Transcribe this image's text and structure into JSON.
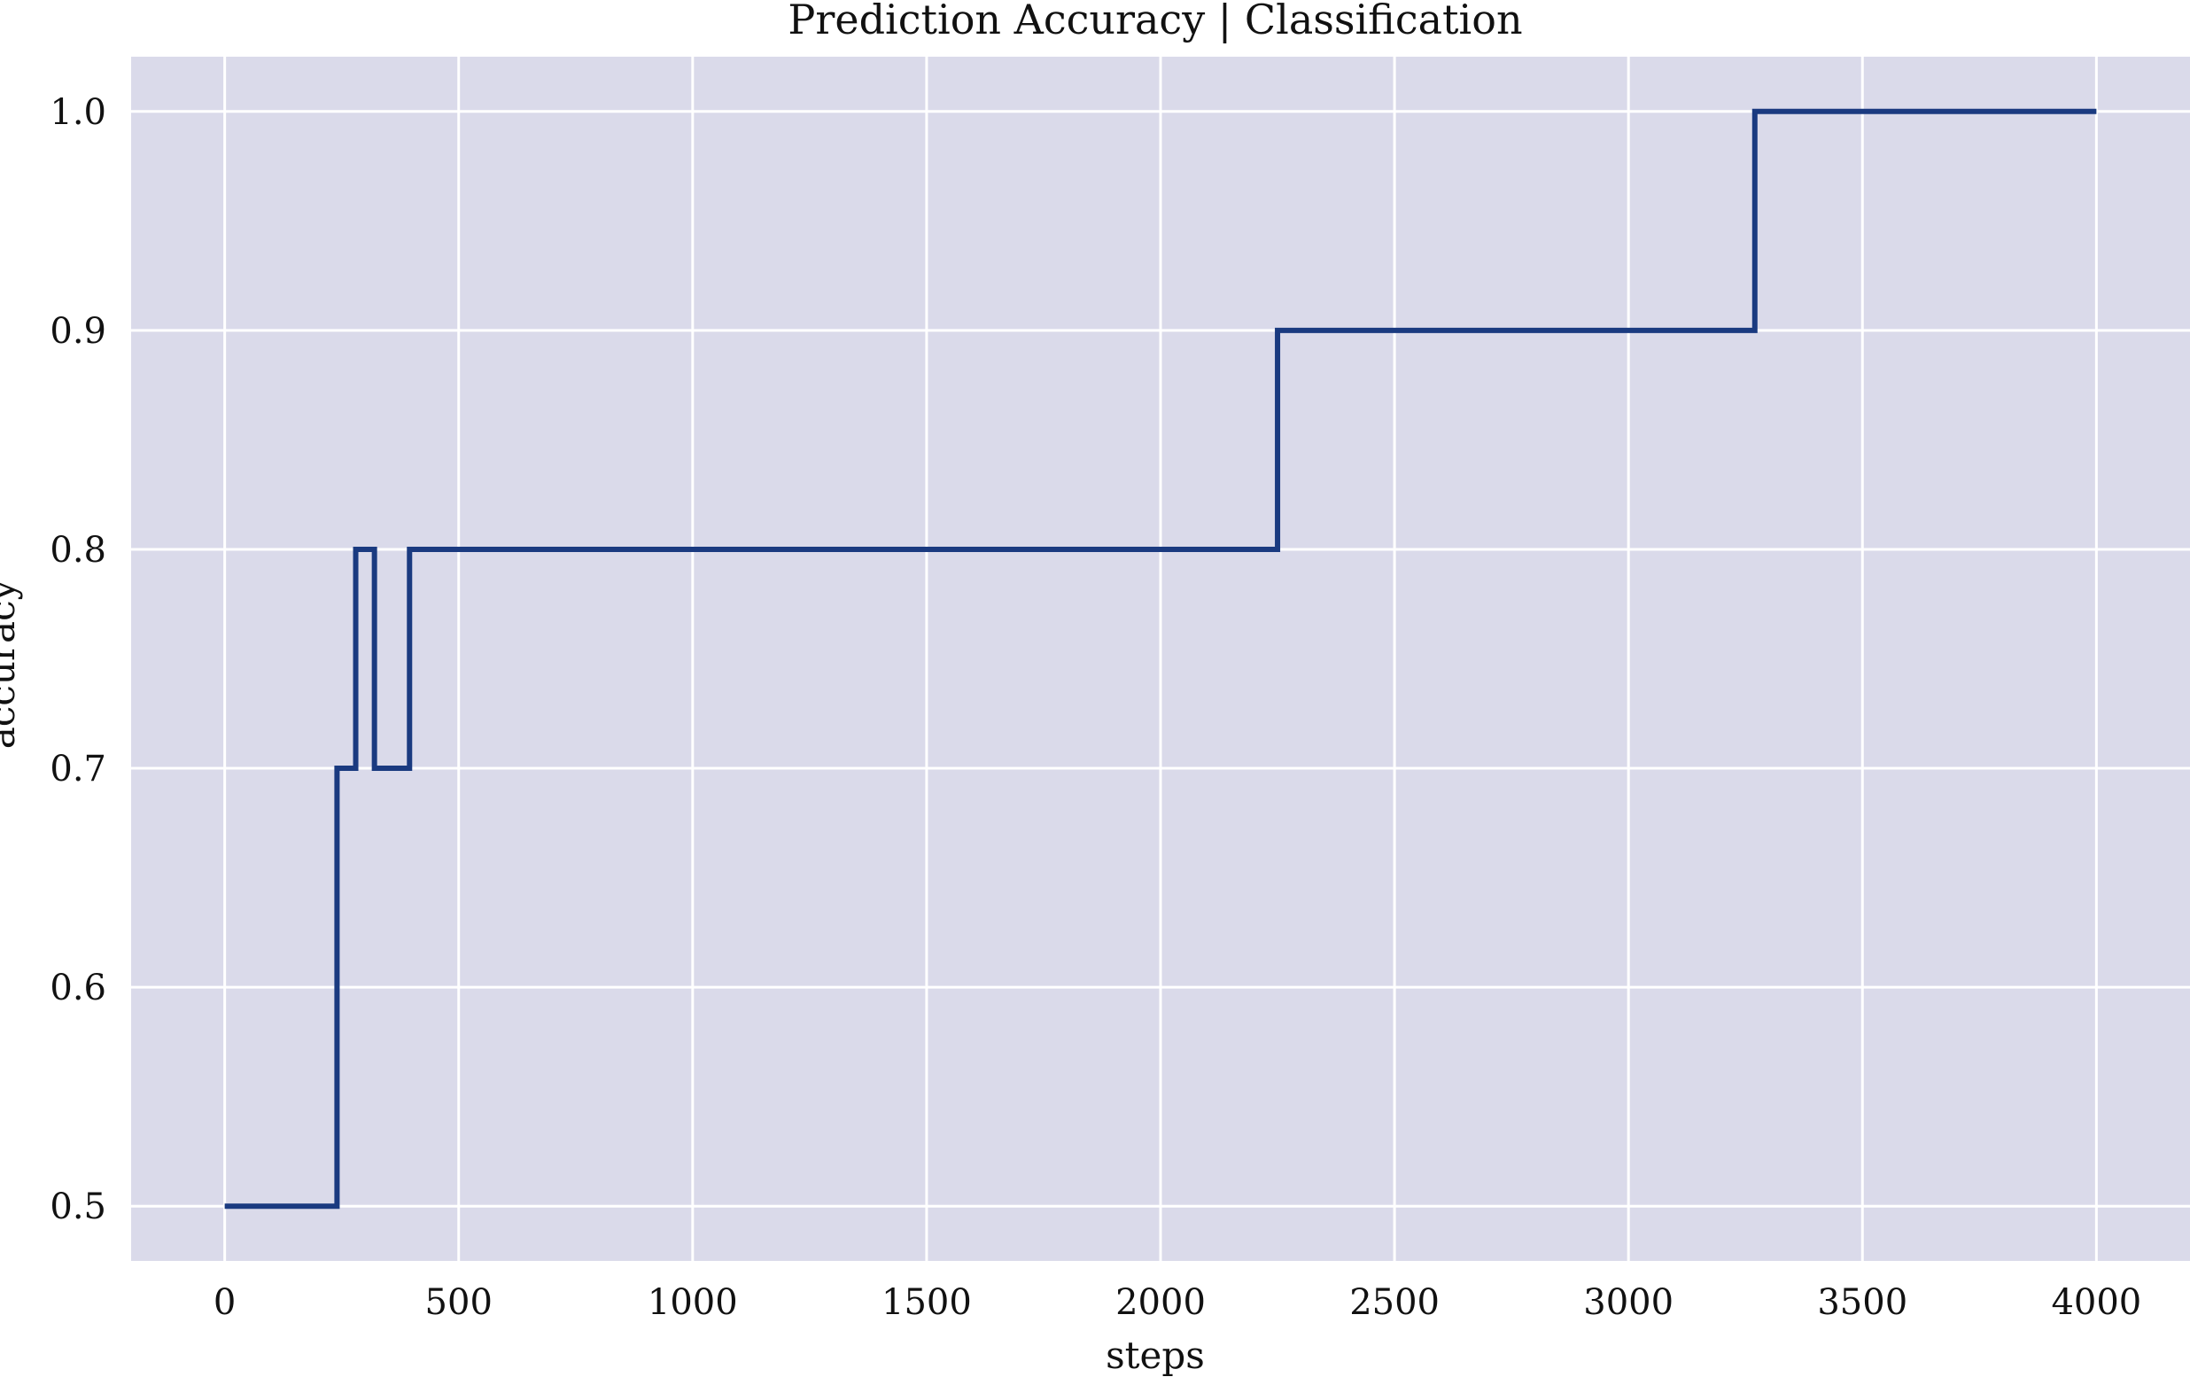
{
  "chart_data": {
    "type": "line",
    "title": "Prediction Accuracy | Classification",
    "xlabel": "steps",
    "ylabel": "accuracy",
    "xlim": [
      -200,
      4200
    ],
    "ylim": [
      0.475,
      1.025
    ],
    "xticks": [
      0,
      500,
      1000,
      1500,
      2000,
      2500,
      3000,
      3500,
      4000
    ],
    "xtick_labels": [
      "0",
      "500",
      "1000",
      "1500",
      "2000",
      "2500",
      "3000",
      "3500",
      "4000"
    ],
    "yticks": [
      0.5,
      0.6,
      0.7,
      0.8,
      0.9,
      1.0
    ],
    "ytick_labels": [
      "0.5",
      "0.6",
      "0.7",
      "0.8",
      "0.9",
      "1.0"
    ],
    "grid": true,
    "background_color": "#dadaea",
    "grid_color": "#ffffff",
    "series": [
      {
        "color": "#1a3a80",
        "step": "post",
        "x": [
          0,
          240,
          280,
          320,
          395,
          2250,
          3270,
          4000
        ],
        "y": [
          0.5,
          0.7,
          0.8,
          0.7,
          0.8,
          0.9,
          1.0,
          1.0
        ]
      }
    ]
  }
}
